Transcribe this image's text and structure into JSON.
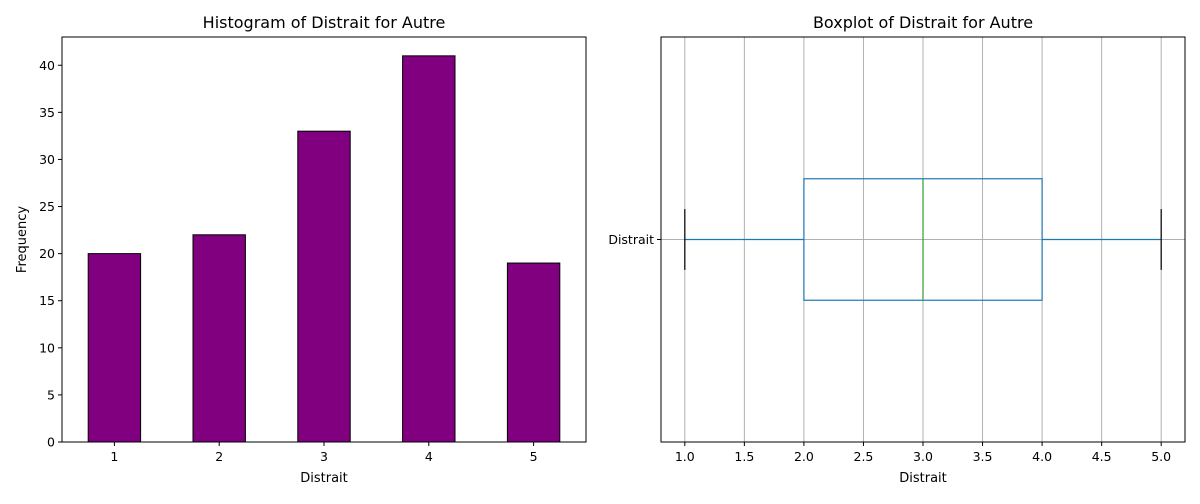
{
  "chart_data": [
    {
      "type": "bar",
      "title": "Histogram of Distrait for Autre",
      "xlabel": "Distrait",
      "ylabel": "Frequency",
      "categories": [
        "1",
        "2",
        "3",
        "4",
        "5"
      ],
      "values": [
        20,
        22,
        33,
        41,
        19
      ],
      "ylim": [
        0,
        43
      ],
      "yticks": [
        "0",
        "5",
        "10",
        "15",
        "20",
        "25",
        "30",
        "35",
        "40"
      ],
      "bar_color": "#800080",
      "bar_edge_color": "#000000",
      "grid": false
    },
    {
      "type": "boxplot",
      "title": "Boxplot of Distrait for Autre",
      "xlabel": "Distrait",
      "category_label": "Distrait",
      "orientation": "horizontal",
      "whisker_low": 1.0,
      "q1": 2.0,
      "median": 3.0,
      "q3": 4.0,
      "whisker_high": 5.0,
      "xlim": [
        0.8,
        5.2
      ],
      "xticks": [
        "1.0",
        "1.5",
        "2.0",
        "2.5",
        "3.0",
        "3.5",
        "4.0",
        "4.5",
        "5.0"
      ],
      "box_color": "#1f77b4",
      "median_color": "#2ca02c",
      "cap_color": "#000000",
      "grid": true
    }
  ]
}
